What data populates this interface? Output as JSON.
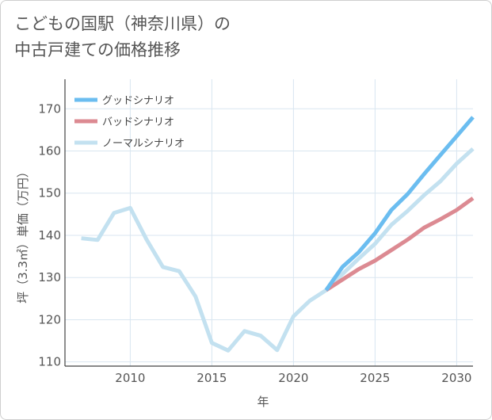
{
  "chart_data": {
    "type": "line",
    "title_line1": "こどもの国駅（神奈川県）の",
    "title_line2": "中古戸建ての価格推移",
    "xlabel": "年",
    "ylabel": "坪（3.3㎡）単価（万円）",
    "xlim": [
      2006,
      2031
    ],
    "ylim": [
      109,
      177
    ],
    "x_ticks": [
      2010,
      2015,
      2020,
      2025,
      2030
    ],
    "y_ticks": [
      110,
      120,
      130,
      140,
      150,
      160,
      170
    ],
    "grid": true,
    "legend_position": "top-left",
    "series": [
      {
        "name": "グッドシナリオ",
        "color": "#6bbdf0",
        "x": [
          2022,
          2023,
          2024,
          2025,
          2026,
          2027,
          2028,
          2029,
          2030,
          2031
        ],
        "y": [
          127.0,
          132.5,
          136.0,
          140.5,
          146.0,
          149.8,
          154.5,
          159.0,
          163.5,
          168.0
        ]
      },
      {
        "name": "バッドシナリオ",
        "color": "#dc8a92",
        "x": [
          2022,
          2023,
          2024,
          2025,
          2026,
          2027,
          2028,
          2029,
          2030,
          2031
        ],
        "y": [
          127.0,
          129.5,
          132.0,
          134.0,
          136.5,
          139.0,
          141.8,
          143.8,
          146.0,
          148.8
        ]
      },
      {
        "name": "ノーマルシナリオ",
        "color": "#c3e1f0",
        "x": [
          2007,
          2008,
          2009,
          2010,
          2011,
          2012,
          2013,
          2014,
          2015,
          2016,
          2017,
          2018,
          2019,
          2020,
          2021,
          2022,
          2023,
          2024,
          2025,
          2026,
          2027,
          2028,
          2029,
          2030,
          2031
        ],
        "y": [
          139.3,
          138.9,
          145.3,
          146.5,
          139.0,
          132.5,
          131.5,
          125.5,
          114.5,
          112.7,
          117.3,
          116.2,
          112.8,
          120.8,
          124.5,
          127.0,
          130.8,
          134.5,
          138.0,
          142.5,
          145.8,
          149.5,
          152.8,
          157.0,
          160.5
        ]
      }
    ]
  }
}
